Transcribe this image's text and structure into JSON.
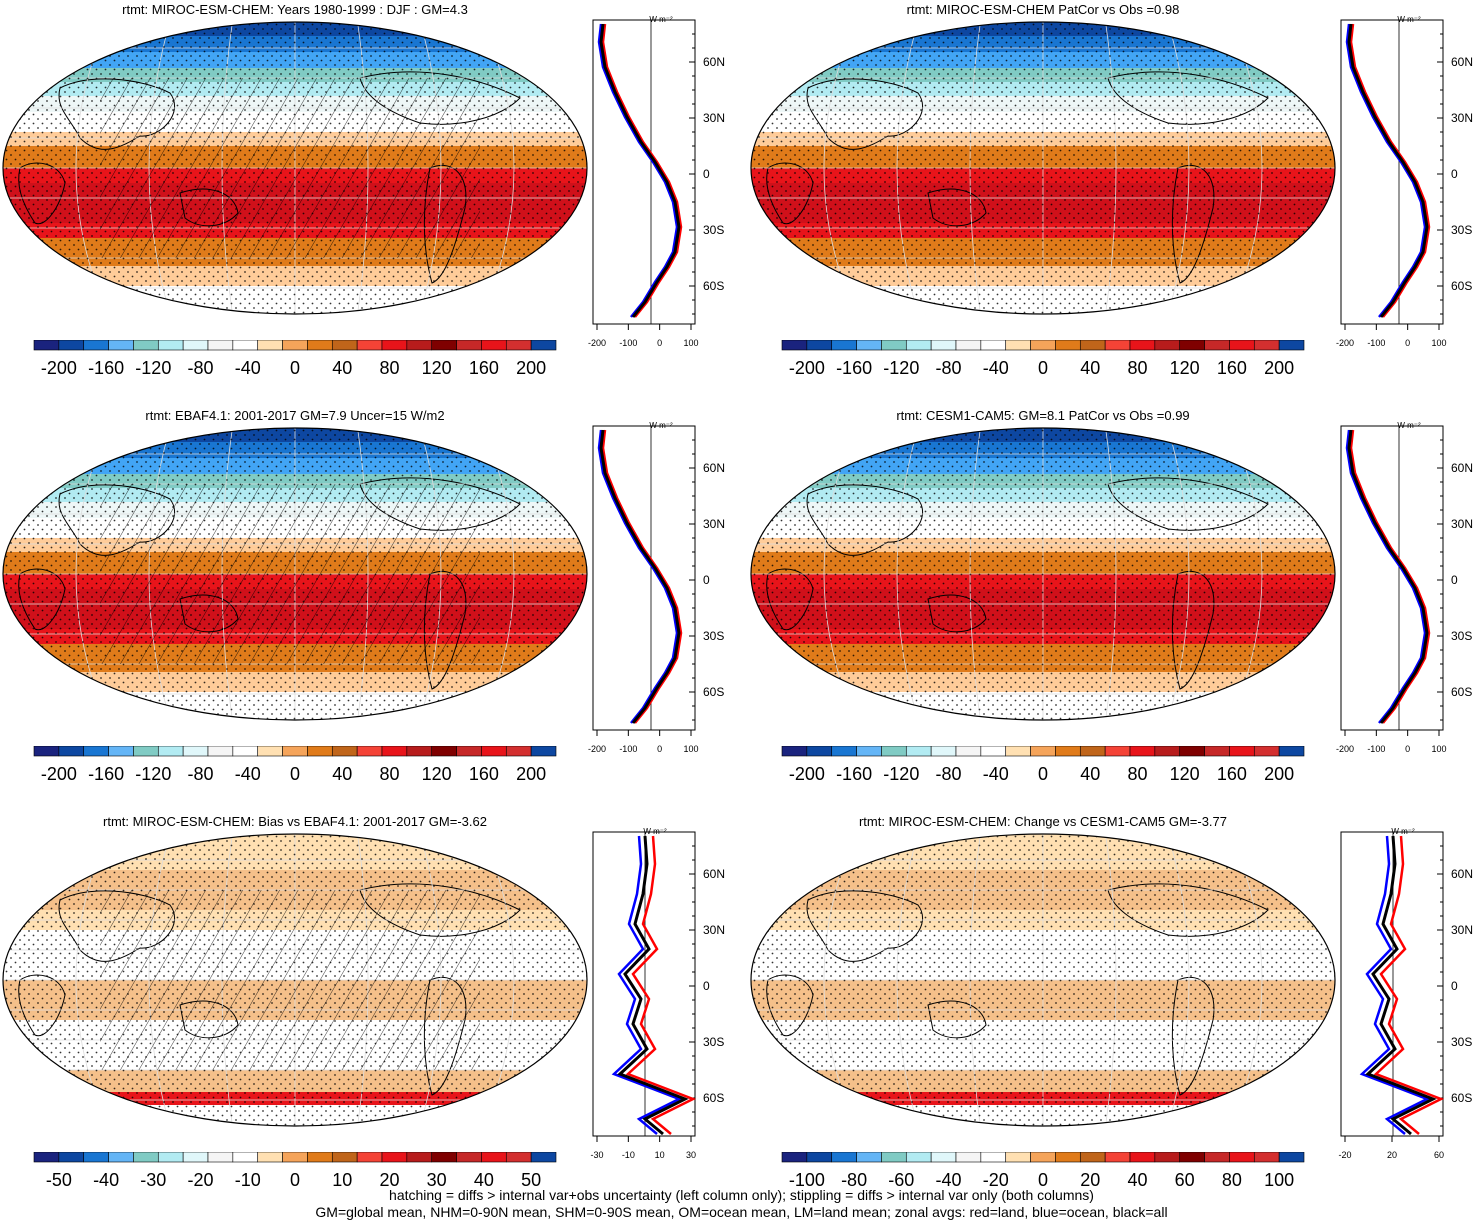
{
  "colorbar_colors": [
    "#1a237e",
    "#0d47a1",
    "#1976d2",
    "#64b5f6",
    "#80cbc4",
    "#b2ebf2",
    "#e0f7fa",
    "#f5f5f5",
    "#ffffff",
    "#ffe0b2",
    "#f5a45a",
    "#e07b1a",
    "#c0651a",
    "#f44336",
    "#e8141a",
    "#b71c1c",
    "#7f0000",
    "#c62828",
    "#e8141a",
    "#d32f2f",
    "#0d47a1"
  ],
  "lines": {
    "land": "#ff0000",
    "ocean": "#0000ff",
    "all": "#000000"
  },
  "panels": [
    {
      "title": "rtmt: MIROC-ESM-CHEM: Years 1980-1999 : DJF : GM=4.3",
      "kind": "full",
      "hatch": true,
      "cbar_labels": [
        "-200",
        "-160",
        "-120",
        "-80",
        "-40",
        "0",
        "40",
        "80",
        "120",
        "160",
        "200"
      ],
      "zx_ticks": [
        "-200",
        "-100",
        "0",
        "100"
      ],
      "zy_ticks": [
        "60N",
        "30N",
        "0",
        "30S",
        "60S"
      ],
      "unit": "W m⁻²"
    },
    {
      "title": "rtmt: MIROC-ESM-CHEM PatCor vs Obs =0.98",
      "kind": "full",
      "hatch": false,
      "cbar_labels": [
        "-200",
        "-160",
        "-120",
        "-80",
        "-40",
        "0",
        "40",
        "80",
        "120",
        "160",
        "200"
      ],
      "zx_ticks": [
        "-200",
        "-100",
        "0",
        "100"
      ],
      "zy_ticks": [
        "60N",
        "30N",
        "0",
        "30S",
        "60S"
      ],
      "unit": "W m⁻²"
    },
    {
      "title": "rtmt: EBAF4.1: 2001-2017 GM=7.9 Uncer=15 W/m2",
      "kind": "full",
      "hatch": true,
      "cbar_labels": [
        "-200",
        "-160",
        "-120",
        "-80",
        "-40",
        "0",
        "40",
        "80",
        "120",
        "160",
        "200"
      ],
      "zx_ticks": [
        "-200",
        "-100",
        "0",
        "100"
      ],
      "zy_ticks": [
        "60N",
        "30N",
        "0",
        "30S",
        "60S"
      ],
      "unit": "W m⁻²"
    },
    {
      "title": "rtmt: CESM1-CAM5: GM=8.1 PatCor vs Obs =0.99",
      "kind": "full",
      "hatch": false,
      "cbar_labels": [
        "-200",
        "-160",
        "-120",
        "-80",
        "-40",
        "0",
        "40",
        "80",
        "120",
        "160",
        "200"
      ],
      "zx_ticks": [
        "-200",
        "-100",
        "0",
        "100"
      ],
      "zy_ticks": [
        "60N",
        "30N",
        "0",
        "30S",
        "60S"
      ],
      "unit": "W m⁻²"
    },
    {
      "title": "rtmt: MIROC-ESM-CHEM: Bias vs EBAF4.1: 2001-2017 GM=-3.62",
      "kind": "diff",
      "hatch": true,
      "cbar_labels": [
        "-50",
        "-40",
        "-30",
        "-20",
        "-10",
        "0",
        "10",
        "20",
        "30",
        "40",
        "50"
      ],
      "zx_ticks": [
        "-30",
        "-10",
        "10",
        "30"
      ],
      "zy_ticks": [
        "60N",
        "30N",
        "0",
        "30S",
        "60S"
      ],
      "unit": "W m⁻²"
    },
    {
      "title": "rtmt: MIROC-ESM-CHEM: Change vs CESM1-CAM5 GM=-3.77",
      "kind": "diff",
      "hatch": false,
      "cbar_labels": [
        "-100",
        "-80",
        "-60",
        "-40",
        "-20",
        "0",
        "20",
        "40",
        "60",
        "80",
        "100"
      ],
      "zx_ticks": [
        "-20",
        "20",
        "60"
      ],
      "zy_ticks": [
        "60N",
        "30N",
        "0",
        "30S",
        "60S"
      ],
      "unit": "W m⁻²"
    }
  ],
  "footer": {
    "line1": "hatching = diffs > internal var+obs uncertainty (left column only); stippling = diffs > internal var only (both columns)",
    "line2": "GM=global mean, NHM=0-90N mean, SHM=0-90S mean, OM=ocean mean, LM=land mean; zonal avgs: red=land, blue=ocean, black=all"
  }
}
